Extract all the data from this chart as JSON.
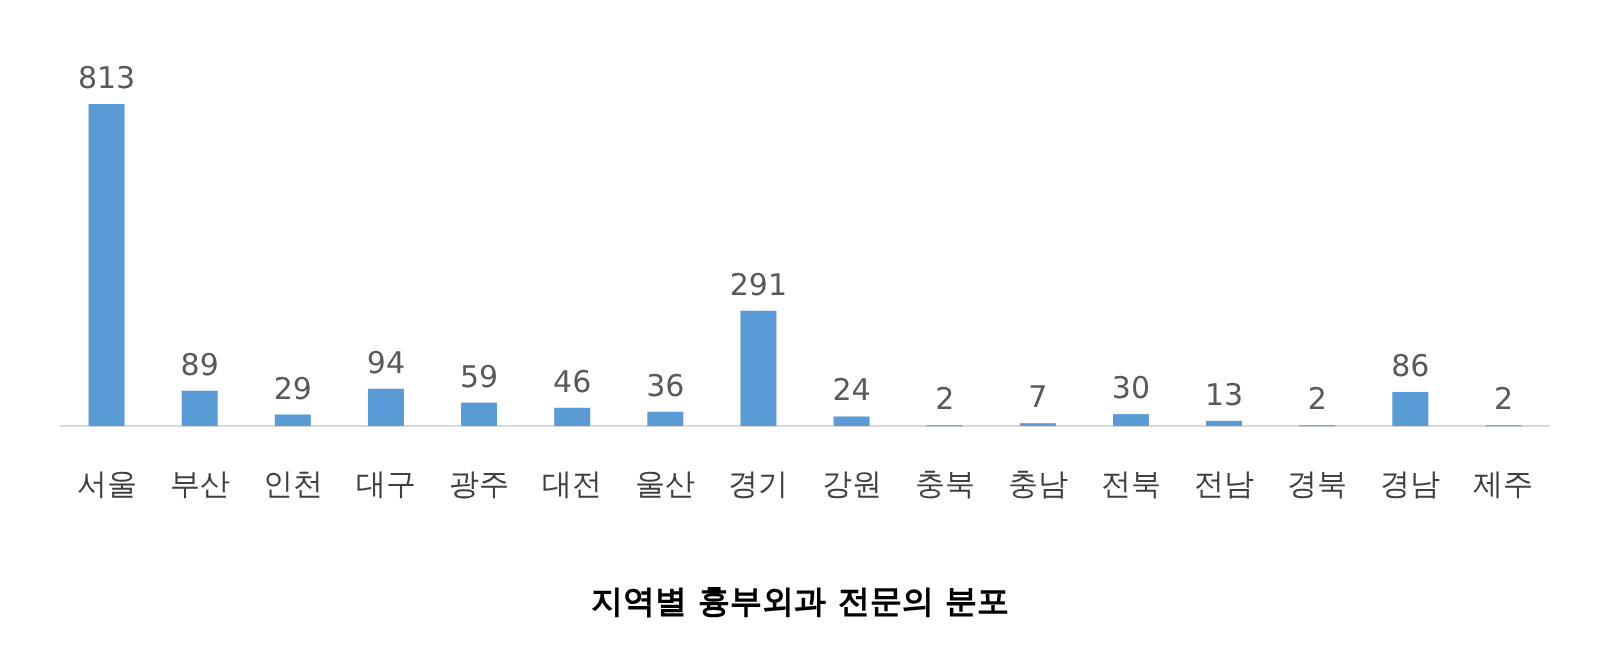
{
  "chart_data": {
    "type": "bar",
    "title": "지역별 흉부외과 전문의 분포",
    "categories": [
      "서울",
      "부산",
      "인천",
      "대구",
      "광주",
      "대전",
      "울산",
      "경기",
      "강원",
      "충북",
      "충남",
      "전북",
      "전남",
      "경북",
      "경남",
      "제주"
    ],
    "values": [
      813,
      89,
      29,
      94,
      59,
      46,
      36,
      291,
      24,
      2,
      7,
      30,
      13,
      2,
      86,
      2
    ],
    "color": "#5b9bd5",
    "data_labels": true
  }
}
